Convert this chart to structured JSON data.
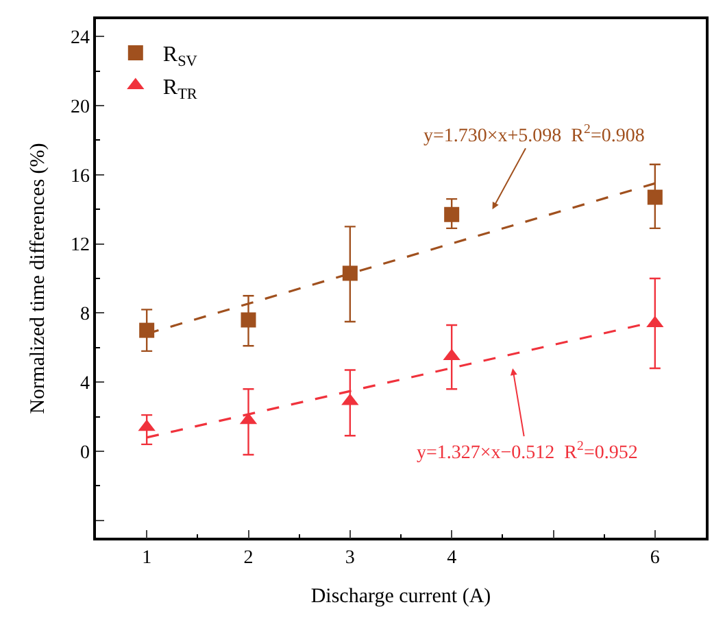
{
  "chart_data": {
    "type": "scatter",
    "xlabel": "Discharge current (A)",
    "ylabel": "Normalized time differences (%)",
    "xlim": [
      0.5,
      6.5
    ],
    "xticks": [
      1,
      2,
      3,
      4,
      {
        "value": 5,
        "label": null
      },
      6
    ],
    "ylim": [
      -5,
      25
    ],
    "yticks": [
      {
        "value": -4,
        "label": null
      },
      0,
      4,
      8,
      12,
      16,
      20,
      24
    ],
    "legend": "top left",
    "series": [
      {
        "name": "R$_{SV}$",
        "color": "#a0501e",
        "marker": "square",
        "x": [
          1,
          2,
          3,
          4,
          6
        ],
        "values": [
          7.0,
          7.6,
          10.3,
          13.7,
          14.7
        ],
        "errors": [
          [
            5.8,
            8.2
          ],
          [
            6.1,
            9.0
          ],
          [
            7.5,
            13.0
          ],
          [
            12.9,
            14.6
          ],
          [
            12.9,
            16.6
          ]
        ]
      },
      {
        "name": "R$_{TR}$",
        "color": "#f0323c",
        "marker": "triangle",
        "x": [
          1,
          2,
          3,
          4,
          6
        ],
        "values": [
          1.4,
          1.8,
          2.9,
          5.5,
          7.4
        ],
        "errors": [
          [
            0.4,
            2.1
          ],
          [
            -0.2,
            3.6
          ],
          [
            0.9,
            4.7
          ],
          [
            3.6,
            7.3
          ],
          [
            4.8,
            10.0
          ]
        ]
      },
      {
        "type": "line",
        "color": "#a0501e",
        "line_style": "dashed",
        "marker": "none",
        "x": [
          1,
          6
        ],
        "values": [
          6.8,
          15.5
        ]
      },
      {
        "type": "line",
        "color": "#f0323c",
        "line_style": "dashed",
        "marker": "none",
        "x": [
          1,
          6
        ],
        "values": [
          0.8,
          7.5
        ]
      }
    ],
    "annotations": [
      "y=1.730×x+5.098  R$^{2}$=0.908",
      "y=1.327×x−0.512  R$^{2}$=0.952"
    ]
  }
}
